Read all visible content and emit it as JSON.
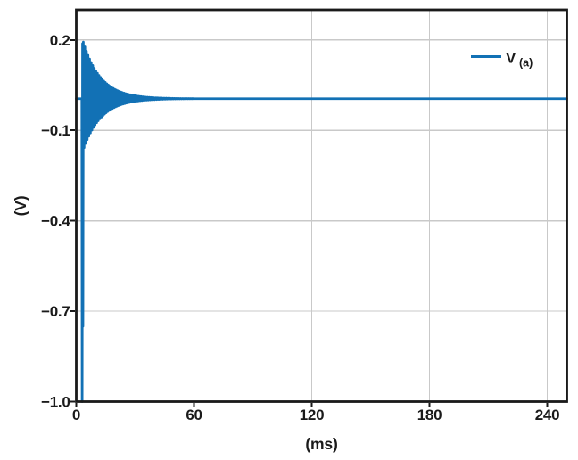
{
  "chart_data": {
    "type": "line",
    "title": "",
    "xlabel": "(ms)",
    "ylabel": "(V)",
    "xlim": [
      0,
      250
    ],
    "ylim": [
      -1.0,
      0.3
    ],
    "grid": "on",
    "xticks": [
      {
        "value": 0,
        "label": "0"
      },
      {
        "value": 60,
        "label": "60"
      },
      {
        "value": 120,
        "label": "120"
      },
      {
        "value": 180,
        "label": "180"
      },
      {
        "value": 240,
        "label": "240"
      }
    ],
    "yticks": [
      {
        "value": 0.2,
        "label": "0.2"
      },
      {
        "value": -0.1,
        "label": "−0.1"
      },
      {
        "value": -0.4,
        "label": "−0.4"
      },
      {
        "value": -0.7,
        "label": "−0.7"
      },
      {
        "value": -1.0,
        "label": "−1.0"
      }
    ],
    "colors": {
      "line": "#1271b5",
      "grid": "#c9c9c9",
      "axis": "#1a1a1a",
      "text": "#1a1a1a",
      "background": "#ffffff"
    },
    "legend": {
      "position": "top-right",
      "label_main": "V",
      "label_sub": "(a)",
      "swatch_color": "#1271b5"
    },
    "series": [
      {
        "name": "V(a)",
        "color": "#1271b5",
        "description": "Flat at ~0 V, then at ~3 ms a sharp negative spike to -1.0 V followed by high-frequency damped ringing (upper peaks ~ +0.19 V, lower peaks ~ -0.17 V) that decays to a steady state of ~0.005 V by ~60 ms and stays flat to 250 ms.",
        "signal_model": {
          "t_start_ms": 3.0,
          "spike_min_v": -1.0,
          "second_spike_v": -0.75,
          "peak_pos_v": 0.188,
          "peak_neg_v": -0.17,
          "ring_period_ms": 0.8,
          "decay_tau_ms": 9.0,
          "steady_state_v": 0.005,
          "settle_time_ms": 60,
          "t_end_ms": 250
        }
      }
    ]
  }
}
